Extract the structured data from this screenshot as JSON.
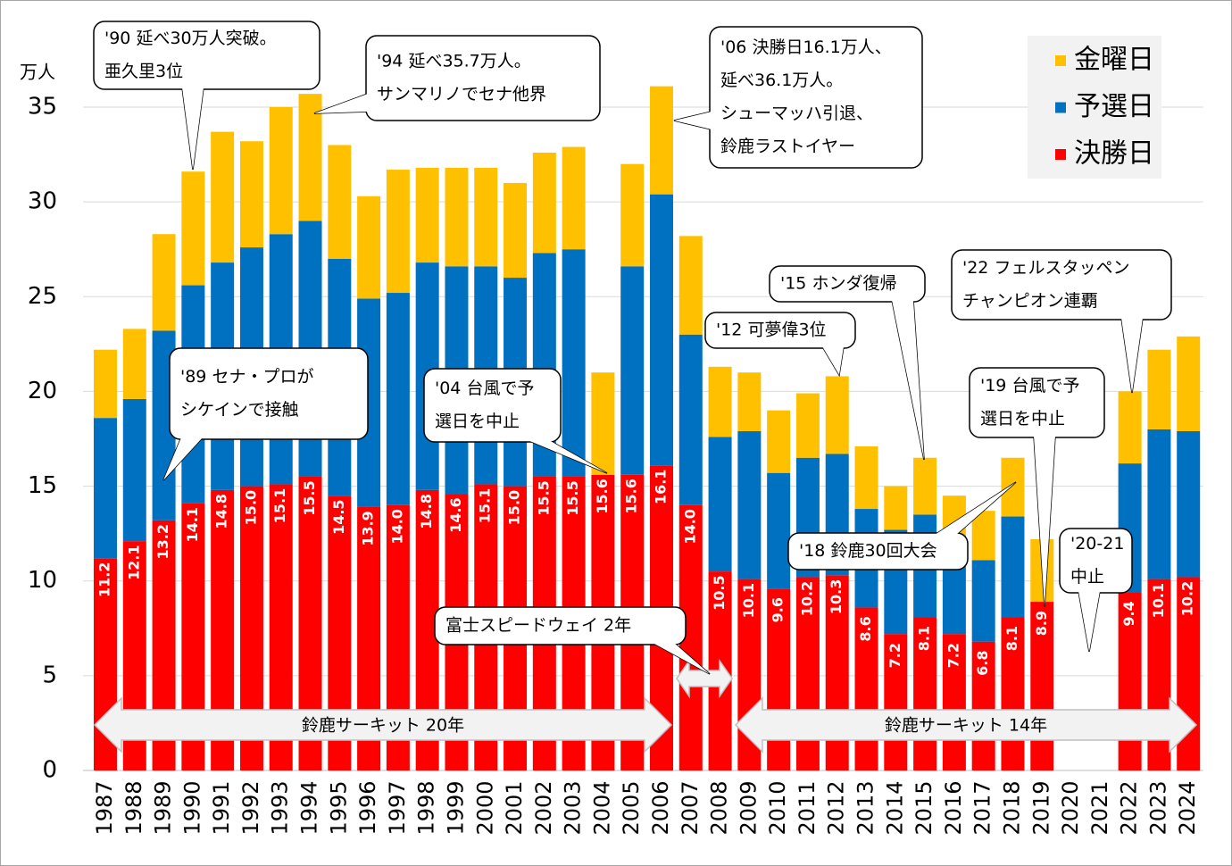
{
  "chart_data": {
    "type": "stacked_bar",
    "y_unit": "万人",
    "categories": [
      "1987",
      "1988",
      "1989",
      "1990",
      "1991",
      "1992",
      "1993",
      "1994",
      "1995",
      "1996",
      "1997",
      "1998",
      "1999",
      "2000",
      "2001",
      "2002",
      "2003",
      "2004",
      "2005",
      "2006",
      "2007",
      "2008",
      "2009",
      "2010",
      "2011",
      "2012",
      "2013",
      "2014",
      "2015",
      "2016",
      "2017",
      "2018",
      "2019",
      "2020",
      "2021",
      "2022",
      "2023",
      "2024"
    ],
    "series": [
      {
        "name": "決勝日",
        "color": "#ff0000",
        "values": [
          11.2,
          12.1,
          13.2,
          14.1,
          14.8,
          15.0,
          15.1,
          15.5,
          14.5,
          13.9,
          14.0,
          14.8,
          14.6,
          15.1,
          15.0,
          15.5,
          15.5,
          15.6,
          15.6,
          16.1,
          14.0,
          10.5,
          10.1,
          9.6,
          10.2,
          10.3,
          8.6,
          7.2,
          8.1,
          7.2,
          6.8,
          8.1,
          8.9,
          null,
          null,
          9.4,
          10.1,
          10.2
        ],
        "value_labels": [
          "11.2",
          "12.1",
          "13.2",
          "14.1",
          "14.8",
          "15.0",
          "15.1",
          "15.5",
          "14.5",
          "13.9",
          "14.0",
          "14.8",
          "14.6",
          "15.1",
          "15.0",
          "15.5",
          "15.5",
          "15.6",
          "15.6",
          "16.1",
          "14.0",
          "10.5",
          "10.1",
          "9.6",
          "10.2",
          "10.3",
          "8.6",
          "7.2",
          "8.1",
          "7.2",
          "6.8",
          "8.1",
          "8.9",
          null,
          null,
          "9.4",
          "10.1",
          "10.2"
        ]
      },
      {
        "name": "予選日",
        "color": "#0070c0",
        "values": [
          7.4,
          7.5,
          10.0,
          11.5,
          12.0,
          12.6,
          13.2,
          13.5,
          12.5,
          11.0,
          11.2,
          12.0,
          12.0,
          11.5,
          11.0,
          11.8,
          12.0,
          0,
          11.0,
          14.3,
          9.0,
          7.1,
          7.8,
          6.1,
          6.3,
          6.4,
          5.2,
          5.5,
          5.4,
          5.2,
          4.3,
          5.3,
          0,
          null,
          null,
          6.8,
          7.9,
          7.7
        ]
      },
      {
        "name": "金曜日",
        "color": "#ffc000",
        "values": [
          3.6,
          3.7,
          5.1,
          6.0,
          6.9,
          5.6,
          6.7,
          6.7,
          6.0,
          5.4,
          6.5,
          5.0,
          5.2,
          5.2,
          5.0,
          5.3,
          5.4,
          5.4,
          5.4,
          5.7,
          5.2,
          3.7,
          3.1,
          3.3,
          3.4,
          4.1,
          3.3,
          2.3,
          3.0,
          2.1,
          2.6,
          3.1,
          3.3,
          null,
          null,
          3.8,
          4.2,
          5.0
        ]
      }
    ],
    "ylim": [
      0,
      35
    ],
    "yticks": [
      0,
      5,
      10,
      15,
      20,
      25,
      30,
      35
    ],
    "grid": true,
    "legend": "top-right",
    "annotations": [
      {
        "lines": [
          "'90 延べ30万人突破。",
          "亜久里3位"
        ]
      },
      {
        "lines": [
          "'94 延べ35.7万人。",
          "サンマリノでセナ他界"
        ]
      },
      {
        "lines": [
          "'06 決勝日16.1万人、",
          "延べ36.1万人。",
          "シューマッハ引退、",
          "鈴鹿ラストイヤー"
        ]
      },
      {
        "lines": [
          "'89 セナ・プロが",
          "シケインで接触"
        ]
      },
      {
        "lines": [
          "'04 台風で予",
          "選日を中止"
        ]
      },
      {
        "lines": [
          "富士スピードウェイ 2年"
        ]
      },
      {
        "lines": [
          "'12 可夢偉3位"
        ]
      },
      {
        "lines": [
          "'15 ホンダ復帰"
        ]
      },
      {
        "lines": [
          "'18 鈴鹿30回大会"
        ]
      },
      {
        "lines": [
          "'19 台風で予",
          "選日を中止"
        ]
      },
      {
        "lines": [
          "'22 フェルスタッペン",
          "チャンピオン連覇"
        ]
      },
      {
        "lines": [
          "'20-21",
          "中止"
        ]
      }
    ],
    "periods": [
      "鈴鹿サーキット 20年",
      "鈴鹿サーキット 14年"
    ]
  }
}
